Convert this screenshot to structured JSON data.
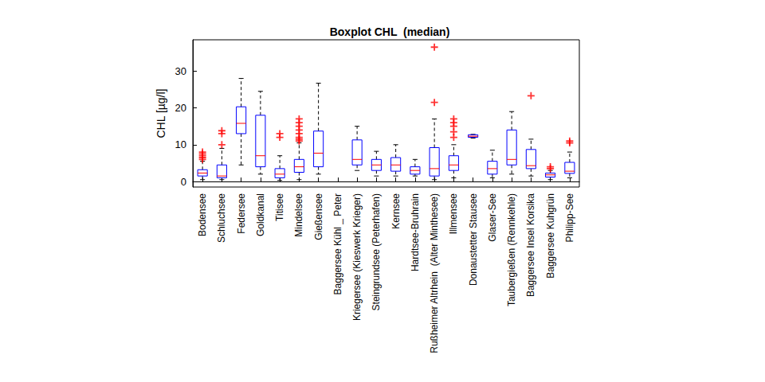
{
  "chart_data": {
    "type": "boxplot",
    "title": "Boxplot CHL  (median)",
    "y_label": "CHL [µg/l]",
    "categories": [
      "Bodensee",
      "Schluchsee",
      "Federsee",
      "Goldkanal",
      "Titisee",
      "Mindelsee",
      "Gießensee",
      "Baggersee Kühl _ Peter",
      "Kriegersee (Kieswerk Krieger)",
      "Steingrundsee (Peterhafen)",
      "Kernsee",
      "Hardtsee-Bruhrain",
      "Rußheimer Altrhein  (Alter Minthesee)",
      "Illmensee",
      "Donaustetter Stausee",
      "Glaser-See",
      "Taubergießen (Rennkehle)",
      "Baggersee Insel Korsika",
      "Baggersee Kuhgrün",
      "Philipp-See"
    ],
    "series": [
      {
        "type": "boxplot",
        "color": "#0000ff",
        "values": [
          [
            0.5,
            1.5,
            2.3,
            3.2,
            5.5
          ],
          [
            0.5,
            1.0,
            1.5,
            4.5,
            9.0
          ],
          [
            4.5,
            13.0,
            15.8,
            20.3,
            28.0
          ],
          [
            2.0,
            4.0,
            7.0,
            18.0,
            24.5
          ],
          [
            0.3,
            1.0,
            2.0,
            3.5,
            7.0
          ],
          [
            0.5,
            2.5,
            4.0,
            6.0,
            10.5
          ],
          [
            2.0,
            4.0,
            7.7,
            13.7,
            26.7
          ],
          null,
          [
            3.0,
            4.5,
            6.0,
            11.3,
            15.0
          ],
          [
            1.5,
            3.0,
            4.5,
            6.0,
            8.2
          ],
          [
            1.5,
            2.8,
            4.5,
            6.5,
            10.0
          ],
          [
            1.5,
            2.0,
            3.0,
            4.0,
            6.0
          ],
          [
            0.5,
            1.5,
            3.5,
            9.2,
            17.0
          ],
          [
            1.0,
            3.0,
            4.5,
            7.0,
            10.0
          ],
          [
            11.8,
            12.0,
            12.3,
            12.7,
            12.8
          ],
          [
            1.0,
            2.0,
            3.5,
            5.5,
            8.5
          ],
          [
            2.0,
            4.5,
            6.0,
            14.0,
            19.0
          ],
          [
            1.5,
            3.5,
            4.3,
            8.7,
            11.5
          ],
          [
            0.5,
            1.2,
            1.8,
            2.3,
            3.0
          ],
          [
            1.0,
            2.2,
            2.8,
            5.2,
            8.0
          ]
        ]
      },
      {
        "type": "scatter",
        "marker": "+",
        "color": "#ff0000",
        "values": [
          [
            6.0,
            6.5,
            7.0,
            7.5,
            8.0
          ],
          [
            10.0,
            13.0,
            13.8
          ],
          [],
          [],
          [
            12.0,
            13.0
          ],
          [
            11.0,
            11.5,
            12.0,
            13.0,
            14.0,
            15.0,
            16.0,
            17.0
          ],
          [],
          [],
          [],
          [],
          [],
          [],
          [
            21.5,
            36.5
          ],
          [
            12.0,
            13.5,
            15.0,
            16.0,
            17.0
          ],
          [],
          [],
          [],
          [
            23.3
          ],
          [
            3.5,
            4.0
          ],
          [
            10.5,
            11.0
          ]
        ]
      }
    ],
    "ylim": [
      -1.5,
      38.5
    ],
    "yticks": [
      0,
      10,
      20,
      30
    ],
    "grid": false
  }
}
